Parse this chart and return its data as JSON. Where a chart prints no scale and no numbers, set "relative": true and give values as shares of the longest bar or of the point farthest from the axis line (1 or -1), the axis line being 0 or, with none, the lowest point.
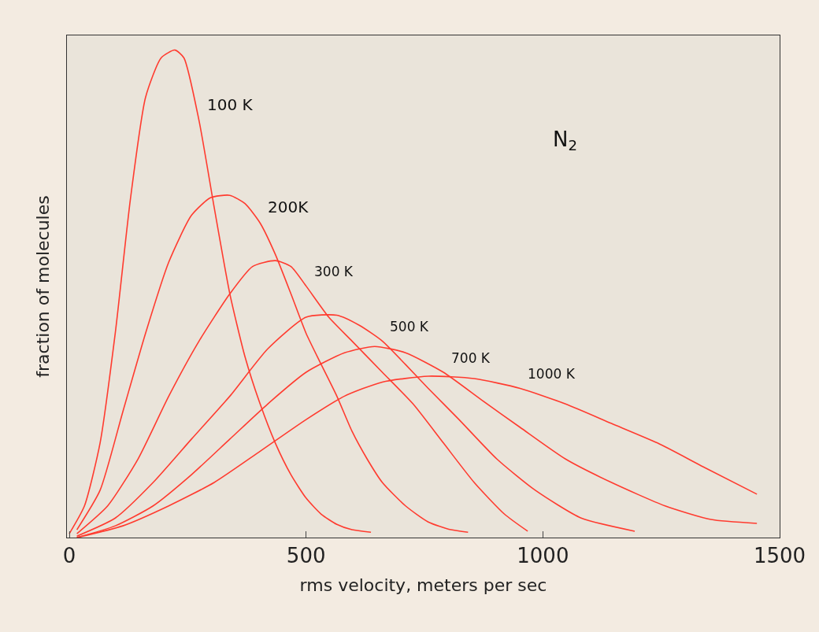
{
  "chart_data": {
    "type": "line",
    "relative": true,
    "xlabel": "rms velocity, meters per sec",
    "ylabel": "fraction of molecules",
    "annotations": [
      "N$_{2}$"
    ],
    "xlim": [
      -5,
      1500
    ],
    "xticks": [
      0,
      500,
      1000,
      1500
    ],
    "grid": false,
    "legend": false,
    "marker": "none",
    "line_style": "solid",
    "series": [
      {
        "name": "100 K",
        "color": "#ff3b2f",
        "x": [
          0,
          32,
          65,
          97,
          129,
          161,
          194,
          223,
          242,
          274,
          306,
          339,
          371,
          403,
          435,
          468,
          500,
          532,
          565,
          597,
          637
        ],
        "values": [
          0.008,
          0.065,
          0.194,
          0.419,
          0.694,
          0.903,
          0.984,
          1,
          0.984,
          0.855,
          0.677,
          0.5,
          0.371,
          0.274,
          0.194,
          0.129,
          0.081,
          0.048,
          0.027,
          0.016,
          0.011
        ]
      },
      {
        "name": "200K",
        "color": "#ff3b2f",
        "x": [
          16,
          65,
          113,
          161,
          210,
          258,
          298,
          339,
          371,
          403,
          435,
          468,
          500,
          532,
          565,
          597,
          629,
          661,
          710,
          758,
          806,
          842
        ],
        "values": [
          0.016,
          0.097,
          0.258,
          0.419,
          0.565,
          0.661,
          0.697,
          0.702,
          0.685,
          0.645,
          0.581,
          0.5,
          0.419,
          0.355,
          0.29,
          0.218,
          0.161,
          0.113,
          0.065,
          0.032,
          0.016,
          0.011
        ]
      },
      {
        "name": "300 K",
        "color": "#ff3b2f",
        "x": [
          16,
          81,
          145,
          210,
          274,
          339,
          387,
          435,
          468,
          500,
          548,
          597,
          661,
          726,
          790,
          855,
          919,
          968
        ],
        "values": [
          0.008,
          0.065,
          0.161,
          0.29,
          0.403,
          0.5,
          0.556,
          0.568,
          0.556,
          0.516,
          0.452,
          0.403,
          0.339,
          0.274,
          0.194,
          0.113,
          0.048,
          0.013
        ]
      },
      {
        "name": "500 K",
        "color": "#ff3b2f",
        "x": [
          16,
          97,
          177,
          258,
          339,
          419,
          500,
          565,
          613,
          661,
          710,
          758,
          823,
          903,
          984,
          1081,
          1194
        ],
        "values": [
          0.003,
          0.04,
          0.113,
          0.202,
          0.29,
          0.387,
          0.452,
          0.456,
          0.435,
          0.403,
          0.355,
          0.306,
          0.242,
          0.161,
          0.097,
          0.04,
          0.013
        ]
      },
      {
        "name": "700 K",
        "color": "#ff3b2f",
        "x": [
          16,
          97,
          177,
          258,
          339,
          419,
          500,
          581,
          645,
          710,
          790,
          871,
          952,
          1048,
          1145,
          1258,
          1355,
          1452
        ],
        "values": [
          0,
          0.024,
          0.065,
          0.129,
          0.202,
          0.274,
          0.339,
          0.379,
          0.392,
          0.379,
          0.339,
          0.282,
          0.226,
          0.161,
          0.113,
          0.065,
          0.037,
          0.029
        ]
      },
      {
        "name": "1000 K",
        "color": "#ff3b2f",
        "x": [
          16,
          113,
          210,
          306,
          403,
          500,
          581,
          661,
          758,
          855,
          952,
          1048,
          1145,
          1242,
          1339,
          1452
        ],
        "values": [
          0,
          0.024,
          0.065,
          0.113,
          0.177,
          0.242,
          0.29,
          0.319,
          0.331,
          0.326,
          0.306,
          0.274,
          0.234,
          0.194,
          0.145,
          0.089
        ]
      }
    ]
  }
}
